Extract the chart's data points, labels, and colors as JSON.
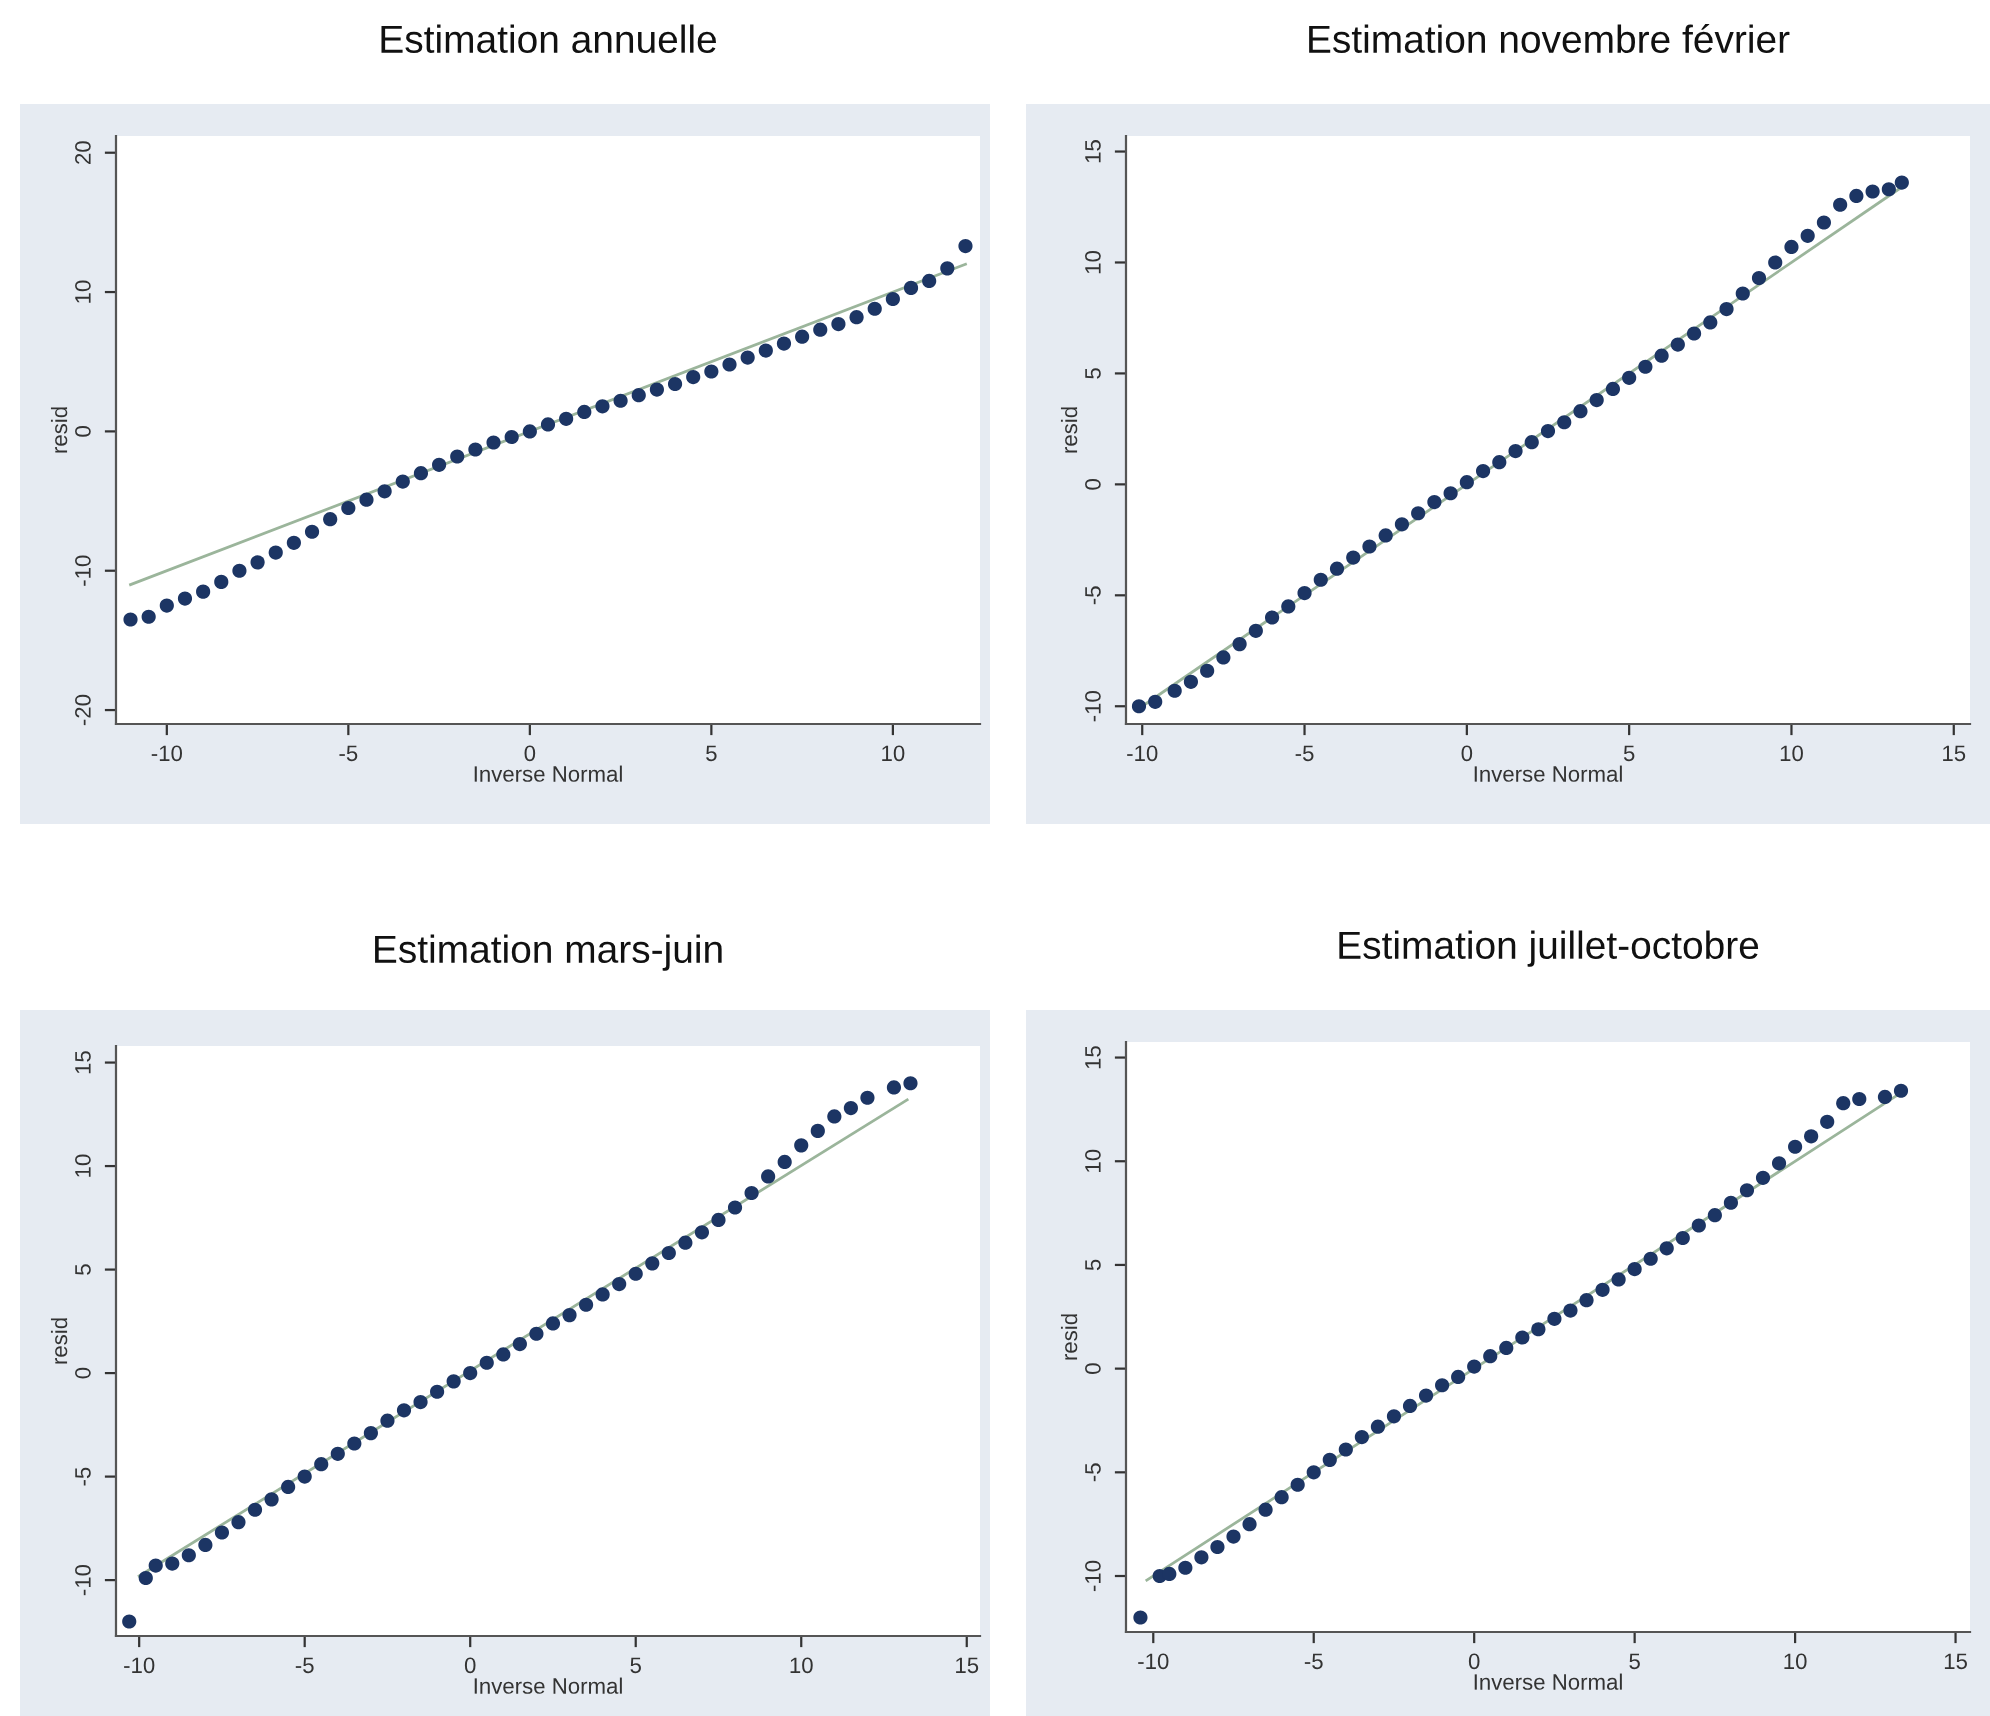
{
  "chart_data": [
    {
      "type": "scatter",
      "title": "Estimation annuelle",
      "xlabel": "Inverse Normal",
      "ylabel": "resid",
      "xlim": [
        -11.4,
        12.4
      ],
      "ylim": [
        -21,
        21.2
      ],
      "xticks": [
        -10,
        -5,
        0,
        5,
        10
      ],
      "yticks": [
        -20,
        -10,
        0,
        10,
        20
      ],
      "series": [
        {
          "marker": "circle",
          "color": "#1c3564",
          "x": [
            -11,
            -10.5,
            -10,
            -9.5,
            -9,
            -8.5,
            -8,
            -7.5,
            -7,
            -6.5,
            -6,
            -5.5,
            -5,
            -4.5,
            -4,
            -3.5,
            -3,
            -2.5,
            -2,
            -1.5,
            -1,
            -0.5,
            0,
            0.5,
            1,
            1.5,
            2,
            2.5,
            3,
            3.5,
            4,
            4.5,
            5,
            5.5,
            6,
            6.5,
            7,
            7.5,
            8,
            8.5,
            9,
            9.5,
            10,
            10.5,
            11,
            11.5,
            12
          ],
          "values": [
            -13.5,
            -13.3,
            -12.5,
            -12,
            -11.5,
            -10.8,
            -10,
            -9.4,
            -8.7,
            -8,
            -7.2,
            -6.3,
            -5.5,
            -4.9,
            -4.3,
            -3.6,
            -3,
            -2.4,
            -1.8,
            -1.3,
            -0.8,
            -0.4,
            0,
            0.5,
            0.9,
            1.4,
            1.8,
            2.2,
            2.6,
            3,
            3.4,
            3.9,
            4.3,
            4.8,
            5.3,
            5.8,
            6.3,
            6.8,
            7.3,
            7.7,
            8.2,
            8.8,
            9.5,
            10.3,
            10.8,
            11.7,
            13.3
          ]
        },
        {
          "type": "line",
          "color": "#9bb59b",
          "x": [
            -11,
            12
          ],
          "values": [
            -11,
            12
          ]
        }
      ]
    },
    {
      "type": "scatter",
      "title": "Estimation novembre février",
      "xlabel": "Inverse Normal",
      "ylabel": "resid",
      "xlim": [
        -10.5,
        15.5
      ],
      "ylim": [
        -10.8,
        15.7
      ],
      "xticks": [
        -10,
        -5,
        0,
        5,
        10,
        15
      ],
      "yticks": [
        -10,
        -5,
        0,
        5,
        10,
        15
      ],
      "series": [
        {
          "marker": "circle",
          "color": "#1c3564",
          "x": [
            -10.1,
            -9.6,
            -9,
            -8.5,
            -8,
            -7.5,
            -7,
            -6.5,
            -6,
            -5.5,
            -5,
            -4.5,
            -4,
            -3.5,
            -3,
            -2.5,
            -2,
            -1.5,
            -1,
            -0.5,
            0,
            0.5,
            1,
            1.5,
            2,
            2.5,
            3,
            3.5,
            4,
            4.5,
            5,
            5.5,
            6,
            6.5,
            7,
            7.5,
            8,
            8.5,
            9,
            9.5,
            10,
            10.5,
            11,
            11.5,
            12,
            12.5,
            13,
            13.4
          ],
          "values": [
            -10,
            -9.8,
            -9.3,
            -8.9,
            -8.4,
            -7.8,
            -7.2,
            -6.6,
            -6,
            -5.5,
            -4.9,
            -4.3,
            -3.8,
            -3.3,
            -2.8,
            -2.3,
            -1.8,
            -1.3,
            -0.8,
            -0.4,
            0.1,
            0.6,
            1,
            1.5,
            1.9,
            2.4,
            2.8,
            3.3,
            3.8,
            4.3,
            4.8,
            5.3,
            5.8,
            6.3,
            6.8,
            7.3,
            7.9,
            8.6,
            9.3,
            10,
            10.7,
            11.2,
            11.8,
            12.6,
            13,
            13.2,
            13.3,
            13.6
          ]
        },
        {
          "type": "line",
          "color": "#9bb59b",
          "x": [
            -10,
            13.4
          ],
          "values": [
            -10,
            13.4
          ]
        }
      ]
    },
    {
      "type": "scatter",
      "title": "Estimation mars-juin",
      "xlabel": "Inverse Normal",
      "ylabel": "resid",
      "xlim": [
        -10.7,
        15.4
      ],
      "ylim": [
        -12.7,
        15.8
      ],
      "xticks": [
        -10,
        -5,
        0,
        5,
        10,
        15
      ],
      "yticks": [
        -10,
        -5,
        0,
        5,
        10,
        15
      ],
      "series": [
        {
          "marker": "circle",
          "color": "#1c3564",
          "x": [
            -10.3,
            -9.8,
            -9.5,
            -9,
            -8.5,
            -8,
            -7.5,
            -7,
            -6.5,
            -6,
            -5.5,
            -5,
            -4.5,
            -4,
            -3.5,
            -3,
            -2.5,
            -2,
            -1.5,
            -1,
            -0.5,
            0,
            0.5,
            1,
            1.5,
            2,
            2.5,
            3,
            3.5,
            4,
            4.5,
            5,
            5.5,
            6,
            6.5,
            7,
            7.5,
            8,
            8.5,
            9,
            9.5,
            10,
            10.5,
            11,
            11.5,
            12,
            12.8,
            13.3
          ],
          "values": [
            -12,
            -9.9,
            -9.3,
            -9.2,
            -8.8,
            -8.3,
            -7.7,
            -7.2,
            -6.6,
            -6.1,
            -5.5,
            -5,
            -4.4,
            -3.9,
            -3.4,
            -2.9,
            -2.3,
            -1.8,
            -1.4,
            -0.9,
            -0.4,
            0,
            0.5,
            0.9,
            1.4,
            1.9,
            2.4,
            2.8,
            3.3,
            3.8,
            4.3,
            4.8,
            5.3,
            5.8,
            6.3,
            6.8,
            7.4,
            8,
            8.7,
            9.5,
            10.2,
            11,
            11.7,
            12.4,
            12.8,
            13.3,
            13.8,
            14
          ]
        },
        {
          "type": "line",
          "color": "#9bb59b",
          "x": [
            -10,
            13.2
          ],
          "values": [
            -9.8,
            13.2
          ]
        }
      ]
    },
    {
      "type": "scatter",
      "title": "Estimation juillet-octobre",
      "xlabel": "Inverse Normal",
      "ylabel": "resid",
      "xlim": [
        -10.85,
        15.45
      ],
      "ylim": [
        -12.7,
        15.75
      ],
      "xticks": [
        -10,
        -5,
        0,
        5,
        10,
        15
      ],
      "yticks": [
        -10,
        -5,
        0,
        5,
        10,
        15
      ],
      "series": [
        {
          "marker": "circle",
          "color": "#1c3564",
          "x": [
            -10.4,
            -9.8,
            -9.5,
            -9,
            -8.5,
            -8,
            -7.5,
            -7,
            -6.5,
            -6,
            -5.5,
            -5,
            -4.5,
            -4,
            -3.5,
            -3,
            -2.5,
            -2,
            -1.5,
            -1,
            -0.5,
            0,
            0.5,
            1,
            1.5,
            2,
            2.5,
            3,
            3.5,
            4,
            4.5,
            5,
            5.5,
            6,
            6.5,
            7,
            7.5,
            8,
            8.5,
            9,
            9.5,
            10,
            10.5,
            11,
            11.5,
            12,
            12.8,
            13.3
          ],
          "values": [
            -12,
            -10,
            -9.9,
            -9.6,
            -9.1,
            -8.6,
            -8.1,
            -7.5,
            -6.8,
            -6.2,
            -5.6,
            -5,
            -4.4,
            -3.9,
            -3.3,
            -2.8,
            -2.3,
            -1.8,
            -1.3,
            -0.8,
            -0.4,
            0.1,
            0.6,
            1,
            1.5,
            1.9,
            2.4,
            2.8,
            3.3,
            3.8,
            4.3,
            4.8,
            5.3,
            5.8,
            6.3,
            6.9,
            7.4,
            8,
            8.6,
            9.2,
            9.9,
            10.7,
            11.2,
            11.9,
            12.8,
            13,
            13.1,
            13.4
          ]
        },
        {
          "type": "line",
          "color": "#9bb59b",
          "x": [
            -10.2,
            13.2
          ],
          "values": [
            -10.2,
            13.2
          ]
        }
      ]
    }
  ]
}
